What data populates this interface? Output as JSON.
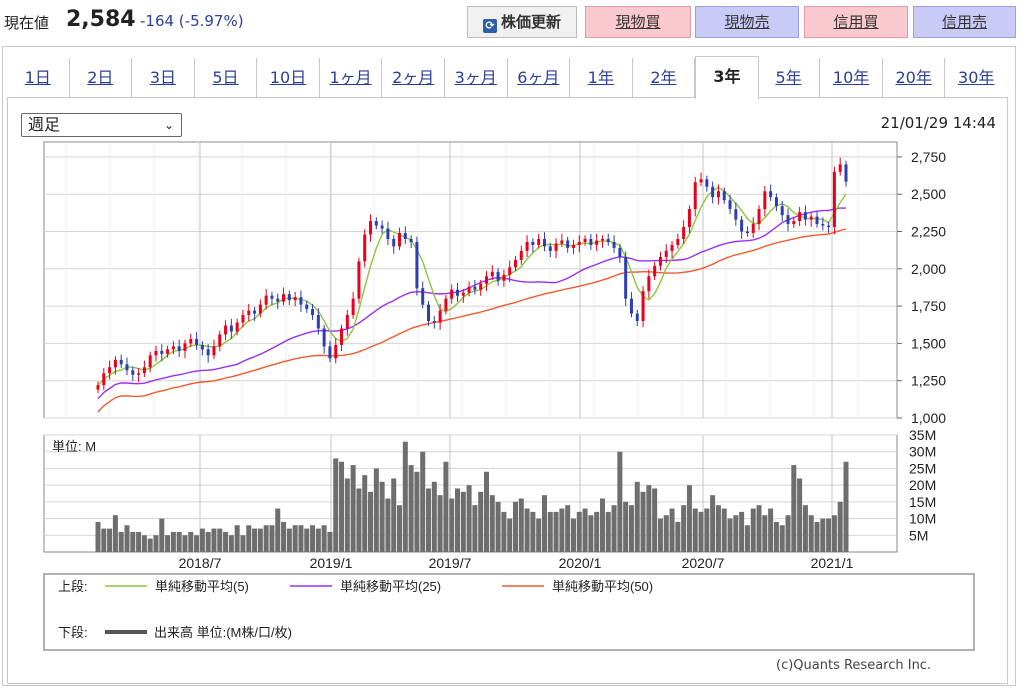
{
  "header": {
    "price_label": "現在値",
    "price_value": "2,584",
    "price_change": "-164 (-5.97%)",
    "refresh_label": "株価更新",
    "refresh_icon": "refresh-icon",
    "buttons": [
      "現物買",
      "現物売",
      "信用買",
      "信用売"
    ]
  },
  "tabs": [
    "1日",
    "2日",
    "3日",
    "5日",
    "10日",
    "1ヶ月",
    "2ヶ月",
    "3ヶ月",
    "6ヶ月",
    "1年",
    "2年",
    "3年",
    "5年",
    "10年",
    "20年",
    "30年"
  ],
  "active_tab": "3年",
  "select": {
    "value": "週足"
  },
  "timestamp": "21/01/29 14:44",
  "copyright": "(c)Quants Research Inc.",
  "colors": {
    "up": "#e8001c",
    "down": "#2c3fb0",
    "ma5": "#8cc63e",
    "ma25": "#9a2ff0",
    "ma50": "#ef5a2e",
    "volume": "#6e6e6e"
  },
  "chart_data": {
    "type": "candlestick",
    "price": {
      "ylim": [
        1000,
        2850
      ],
      "yticks": [
        "1,000",
        "1,250",
        "1,500",
        "1,750",
        "2,000",
        "2,250",
        "2,500",
        "2,750"
      ],
      "ytick_values": [
        1000,
        1250,
        1500,
        1750,
        2000,
        2250,
        2500,
        2750
      ],
      "xlim": [
        "2018-02",
        "2021-01"
      ],
      "closes": [
        1220,
        1300,
        1340,
        1390,
        1360,
        1320,
        1290,
        1300,
        1340,
        1420,
        1450,
        1430,
        1460,
        1480,
        1450,
        1500,
        1530,
        1490,
        1460,
        1420,
        1480,
        1560,
        1620,
        1580,
        1640,
        1690,
        1720,
        1700,
        1760,
        1820,
        1800,
        1780,
        1830,
        1790,
        1810,
        1760,
        1730,
        1690,
        1600,
        1480,
        1400,
        1490,
        1600,
        1690,
        1800,
        2050,
        2230,
        2320,
        2290,
        2270,
        2200,
        2150,
        2240,
        2200,
        2180,
        1870,
        1760,
        1650,
        1640,
        1720,
        1800,
        1860,
        1820,
        1840,
        1880,
        1860,
        1900,
        1950,
        1980,
        1920,
        1960,
        2010,
        2060,
        2120,
        2180,
        2160,
        2200,
        2150,
        2120,
        2170,
        2190,
        2140,
        2160,
        2180,
        2200,
        2160,
        2190,
        2200,
        2180,
        2140,
        2080,
        1800,
        1700,
        1650,
        1850,
        1950,
        2020,
        2080,
        2120,
        2160,
        2200,
        2280,
        2400,
        2580,
        2600,
        2550,
        2480,
        2520,
        2460,
        2400,
        2330,
        2250,
        2240,
        2300,
        2400,
        2520,
        2480,
        2420,
        2360,
        2300,
        2320,
        2380,
        2330,
        2350,
        2300,
        2290,
        2280,
        2650,
        2700,
        2584
      ],
      "ma5_start": [
        1310,
        1390,
        1310,
        1290
      ],
      "ma25_start": [
        1080,
        1220,
        1300
      ],
      "ma50_start": [
        1000,
        1100,
        1150
      ]
    },
    "volume": {
      "ylim": [
        0,
        35
      ],
      "yticks": [
        "5M",
        "10M",
        "15M",
        "20M",
        "25M",
        "30M",
        "35M"
      ],
      "ytick_values": [
        5,
        10,
        15,
        20,
        25,
        30,
        35
      ],
      "unit_label": "単位: M",
      "values": [
        9,
        7,
        7,
        11,
        6,
        8,
        6,
        6,
        5,
        4,
        5,
        10,
        5,
        6,
        6,
        5,
        6,
        5,
        7,
        6,
        7,
        7,
        6,
        5,
        8,
        5,
        8,
        7,
        7,
        8,
        8,
        13,
        9,
        7,
        8,
        8,
        7,
        8,
        7,
        8,
        6,
        28,
        27,
        22,
        26,
        19,
        23,
        18,
        25,
        21,
        16,
        22,
        14,
        33,
        26,
        24,
        30,
        19,
        21,
        17,
        27,
        16,
        19,
        18,
        20,
        14,
        18,
        24,
        17,
        15,
        12,
        10,
        15,
        16,
        13,
        12,
        10,
        17,
        12,
        12,
        13,
        14,
        10,
        12,
        13,
        11,
        12,
        16,
        12,
        14,
        30,
        15,
        14,
        21,
        18,
        20,
        19,
        10,
        11,
        13,
        9,
        14,
        20,
        13,
        12,
        13,
        17,
        14,
        13,
        10,
        11,
        12,
        8,
        13,
        14,
        11,
        13,
        9,
        8,
        11,
        26,
        22,
        14,
        11,
        9,
        10,
        10,
        11,
        15,
        27
      ],
      "unit_note": "出来高 単位:(M株/口/枚)"
    },
    "xticks": [
      "2018/7",
      "2019/1",
      "2019/7",
      "2020/1",
      "2020/7",
      "2021/1"
    ],
    "legend": {
      "upper_label": "上段:",
      "lower_label": "下段:",
      "items": [
        "単純移動平均(5)",
        "単純移動平均(25)",
        "単純移動平均(50)"
      ],
      "volume_item": "出来高 単位:(M株/口/枚)"
    }
  }
}
